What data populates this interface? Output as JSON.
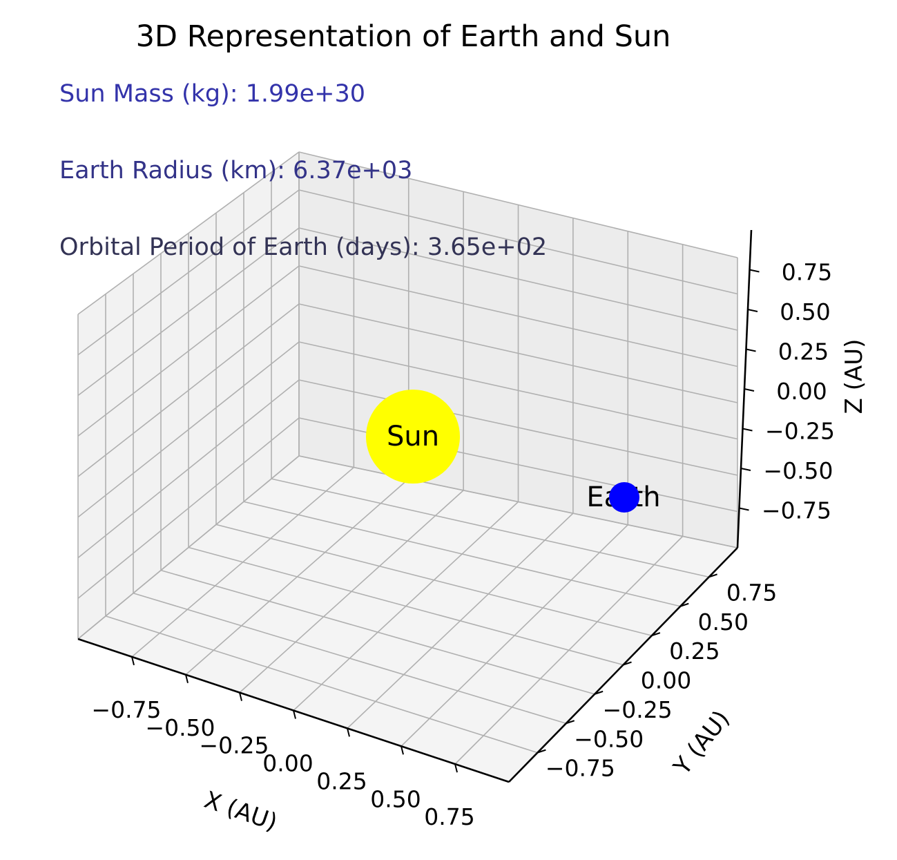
{
  "chart_data": {
    "type": "scatter",
    "projection": "3d",
    "title": "3D Representation of Earth and Sun",
    "xlabel": "X (AU)",
    "ylabel": "Y (AU)",
    "zlabel": "Z (AU)",
    "xlim": [
      -1,
      1
    ],
    "ylim": [
      -1,
      1
    ],
    "zlim": [
      -1,
      1
    ],
    "ticks": [
      -0.75,
      -0.5,
      -0.25,
      0,
      0.25,
      0.5,
      0.75
    ],
    "tick_labels": [
      "−0.75",
      "−0.50",
      "−0.25",
      "0.00",
      "0.25",
      "0.50",
      "0.75"
    ],
    "grid": true,
    "annotations": [
      {
        "text": "Sun Mass (kg): 1.99e+30",
        "color": "#3333aa"
      },
      {
        "text": "Earth Radius (km): 6.37e+03",
        "color": "#333388"
      },
      {
        "text": "Orbital Period of Earth (days): 3.65e+02",
        "color": "#333355"
      }
    ],
    "points": [
      {
        "label": "Sun",
        "x": 0,
        "y": 0,
        "z": 0,
        "color": "#ffff00"
      },
      {
        "label": "Earth",
        "x": 1,
        "y": 0,
        "z": 0,
        "color": "#0000ff"
      }
    ]
  }
}
